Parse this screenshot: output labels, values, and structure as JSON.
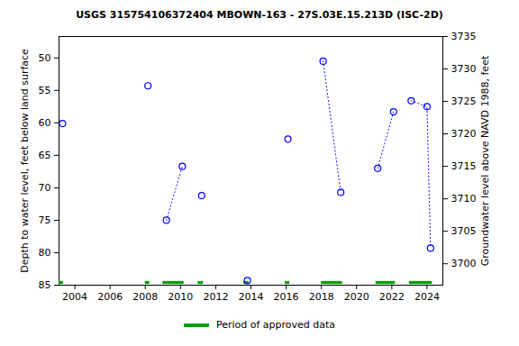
{
  "chart_data": {
    "type": "scatter",
    "title": "USGS 315754106372404 MBOWN-163 - 27S.03E.15.213D (ISC-2D)",
    "x_label": null,
    "y_label": "Depth to water level, feet below land surface",
    "y2_label": "Groundwater level above NAVD 1988, feet",
    "xlim": [
      2003.1,
      2024.9
    ],
    "xticks": [
      2004,
      2006,
      2008,
      2010,
      2012,
      2014,
      2016,
      2018,
      2020,
      2022,
      2024
    ],
    "ylim": [
      85,
      46.7
    ],
    "yticks": [
      50,
      55,
      60,
      65,
      70,
      75,
      80,
      85
    ],
    "y2lim": [
      3696.7,
      3735
    ],
    "y2ticks": [
      3700,
      3705,
      3710,
      3715,
      3720,
      3725,
      3730,
      3735
    ],
    "grid": false,
    "color": "#0000ff",
    "marker": "circle",
    "line_style": "dotted",
    "series": [
      {
        "x": [
          2003.3
        ],
        "values": [
          60.1
        ]
      },
      {
        "x": [
          2008.15
        ],
        "values": [
          54.3
        ]
      },
      {
        "x": [
          2009.2,
          2010.1
        ],
        "values": [
          75.0,
          66.7
        ]
      },
      {
        "x": [
          2011.2
        ],
        "values": [
          71.2
        ]
      },
      {
        "x": [
          2013.8
        ],
        "values": [
          84.3
        ]
      },
      {
        "x": [
          2016.1
        ],
        "values": [
          62.5
        ]
      },
      {
        "x": [
          2018.1,
          2019.1
        ],
        "values": [
          50.5,
          70.7
        ]
      },
      {
        "x": [
          2021.2,
          2022.1
        ],
        "values": [
          67.0,
          58.3
        ]
      },
      {
        "x": [
          2023.1,
          2024.0,
          2024.2
        ],
        "values": [
          56.6,
          57.5,
          79.3
        ]
      }
    ],
    "approved_periods": {
      "name": "Period of approved data",
      "color": "#00a000",
      "ranges": [
        [
          2003.1,
          2003.35
        ],
        [
          2008.0,
          2008.25
        ],
        [
          2009.0,
          2010.2
        ],
        [
          2011.0,
          2011.3
        ],
        [
          2013.6,
          2013.9
        ],
        [
          2015.95,
          2016.2
        ],
        [
          2018.0,
          2019.2
        ],
        [
          2021.1,
          2022.2
        ],
        [
          2023.0,
          2024.3
        ]
      ]
    }
  }
}
